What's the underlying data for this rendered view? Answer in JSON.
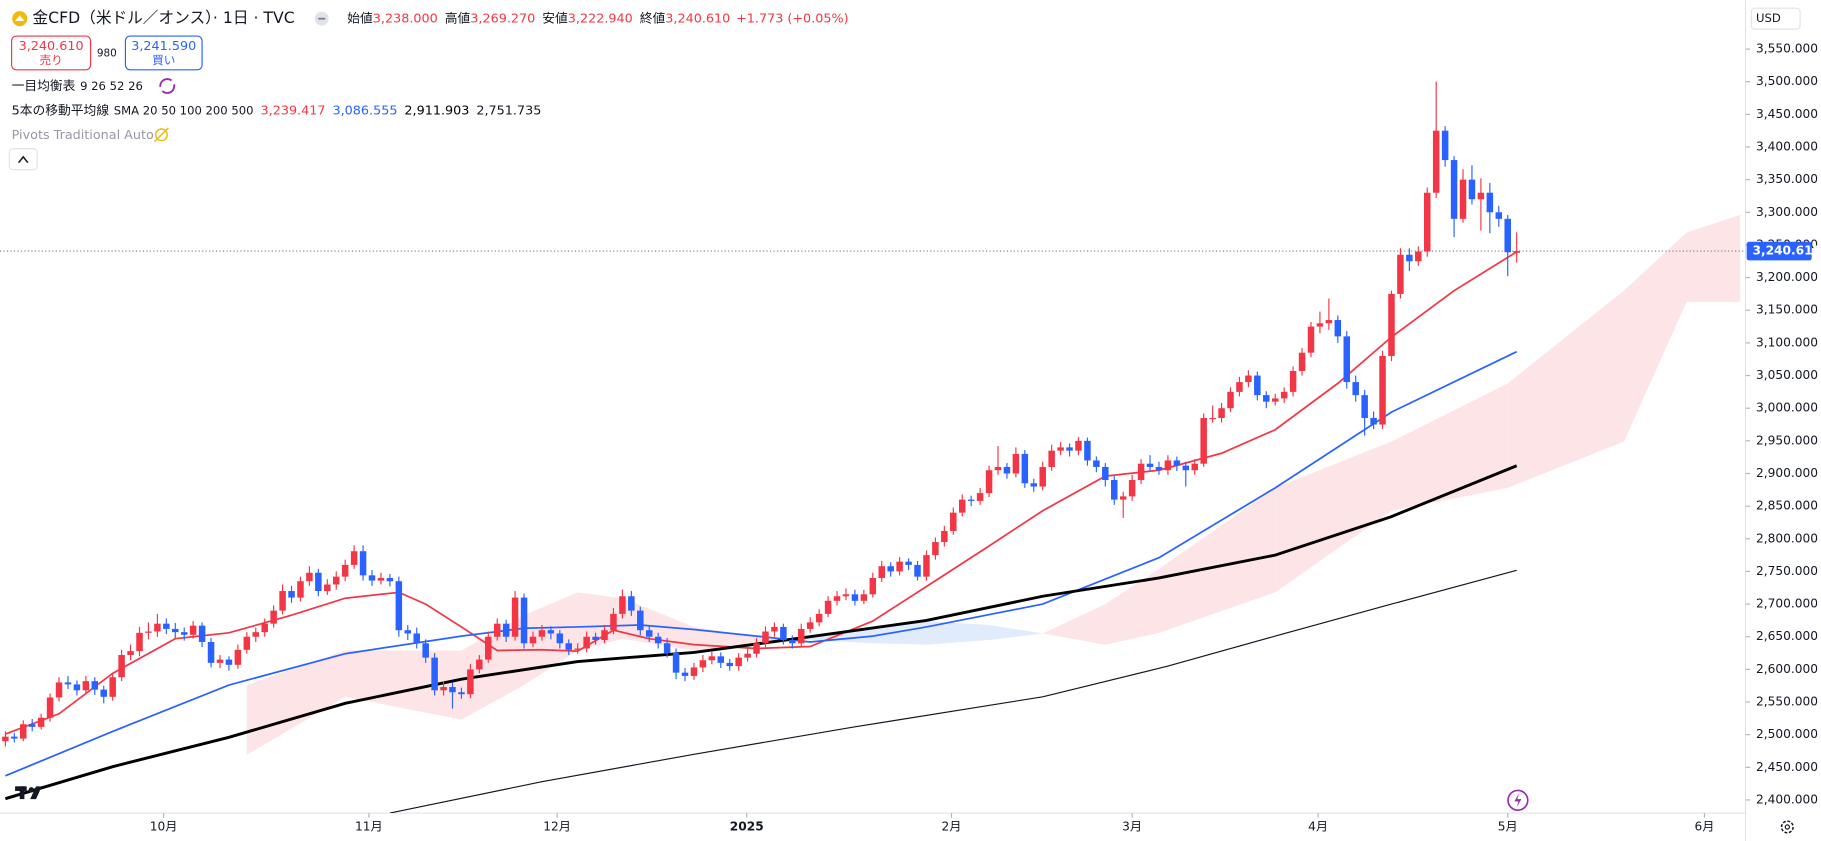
{
  "header": {
    "title": "金CFD（米ドル／オンス）· 1日 · TVC",
    "ohlc_labels": [
      "始値",
      "高値",
      "安値",
      "終値"
    ],
    "ohlc_values": [
      "3,238.000",
      "3,269.270",
      "3,222.940",
      "3,240.610"
    ],
    "change": "+1.773 (+0.05%)",
    "sell": {
      "price": "3,240.610",
      "label": "売り"
    },
    "spread": "980",
    "buy": {
      "price": "3,241.590",
      "label": "買い"
    },
    "indicators": [
      {
        "name": "一目均衡表",
        "params": "9 26 52 26"
      },
      {
        "name": "5本の移動平均線",
        "params": "SMA 20 50 100 200 500",
        "values": [
          "3,239.417",
          "3,086.555",
          "2,911.903",
          "2,751.735"
        ]
      },
      {
        "name": "Pivots Traditional Auto"
      }
    ]
  },
  "chart_data": {
    "type": "candlestick",
    "currency": "USD",
    "up_color": "#f23645",
    "down_color": "#2962ff",
    "ylim": [
      2380,
      3625
    ],
    "yticks": [
      {
        "value": 2400,
        "label": "2,400.000"
      },
      {
        "value": 2450,
        "label": "2,450.000"
      },
      {
        "value": 2500,
        "label": "2,500.000"
      },
      {
        "value": 2550,
        "label": "2,550.000"
      },
      {
        "value": 2600,
        "label": "2,600.000"
      },
      {
        "value": 2650,
        "label": "2,650.000"
      },
      {
        "value": 2700,
        "label": "2,700.000"
      },
      {
        "value": 2750,
        "label": "2,750.000"
      },
      {
        "value": 2800,
        "label": "2,800.000"
      },
      {
        "value": 2850,
        "label": "2,850.000"
      },
      {
        "value": 2900,
        "label": "2,900.000"
      },
      {
        "value": 2950,
        "label": "2,950.000"
      },
      {
        "value": 3000,
        "label": "3,000.000"
      },
      {
        "value": 3050,
        "label": "3,050.000"
      },
      {
        "value": 3100,
        "label": "3,100.000"
      },
      {
        "value": 3150,
        "label": "3,150.000"
      },
      {
        "value": 3200,
        "label": "3,200.000"
      },
      {
        "value": 3250,
        "label": "3,250.000"
      },
      {
        "value": 3300,
        "label": "3,300.000"
      },
      {
        "value": 3350,
        "label": "3,350.000"
      },
      {
        "value": 3400,
        "label": "3,400.000"
      },
      {
        "value": 3450,
        "label": "3,450.000"
      },
      {
        "value": 3500,
        "label": "3,500.000"
      },
      {
        "value": 3550,
        "label": "3,550.000"
      }
    ],
    "xlim": [
      -0.6,
      194.2
    ],
    "xticks": [
      {
        "value": 17.7,
        "label": "10月"
      },
      {
        "value": 40.65,
        "label": "11月"
      },
      {
        "value": 61.7,
        "label": "12月"
      },
      {
        "value": 82.9,
        "label": "2025"
      },
      {
        "value": 105.8,
        "label": "2月"
      },
      {
        "value": 126,
        "label": "3月"
      },
      {
        "value": 146.8,
        "label": "4月"
      },
      {
        "value": 168,
        "label": "5月"
      },
      {
        "value": 190,
        "label": "6月"
      }
    ],
    "last_price": {
      "value": 3240.61,
      "label": "3,240.610"
    },
    "ohlc": [
      [
        2490,
        2505,
        2482,
        2497
      ],
      [
        2497,
        2503,
        2488,
        2494
      ],
      [
        2494,
        2522,
        2490,
        2516
      ],
      [
        2516,
        2524,
        2505,
        2512
      ],
      [
        2512,
        2532,
        2508,
        2526
      ],
      [
        2526,
        2563,
        2520,
        2557
      ],
      [
        2557,
        2588,
        2551,
        2580
      ],
      [
        2580,
        2590,
        2570,
        2577
      ],
      [
        2577,
        2583,
        2560,
        2568
      ],
      [
        2568,
        2590,
        2562,
        2582
      ],
      [
        2582,
        2588,
        2561,
        2569
      ],
      [
        2569,
        2575,
        2548,
        2558
      ],
      [
        2558,
        2594,
        2552,
        2588
      ],
      [
        2588,
        2630,
        2582,
        2622
      ],
      [
        2622,
        2638,
        2614,
        2628
      ],
      [
        2628,
        2665,
        2620,
        2656
      ],
      [
        2656,
        2672,
        2646,
        2658
      ],
      [
        2658,
        2685,
        2650,
        2670
      ],
      [
        2670,
        2678,
        2654,
        2662
      ],
      [
        2662,
        2671,
        2648,
        2657
      ],
      [
        2657,
        2664,
        2644,
        2653
      ],
      [
        2653,
        2674,
        2647,
        2667
      ],
      [
        2667,
        2672,
        2634,
        2642
      ],
      [
        2642,
        2648,
        2603,
        2610
      ],
      [
        2610,
        2622,
        2602,
        2615
      ],
      [
        2615,
        2620,
        2598,
        2607
      ],
      [
        2607,
        2638,
        2601,
        2630
      ],
      [
        2630,
        2657,
        2624,
        2650
      ],
      [
        2650,
        2664,
        2642,
        2657
      ],
      [
        2657,
        2678,
        2650,
        2670
      ],
      [
        2670,
        2698,
        2664,
        2690
      ],
      [
        2690,
        2730,
        2684,
        2720
      ],
      [
        2720,
        2728,
        2702,
        2710
      ],
      [
        2710,
        2742,
        2704,
        2735
      ],
      [
        2735,
        2758,
        2728,
        2748
      ],
      [
        2748,
        2754,
        2712,
        2720
      ],
      [
        2720,
        2738,
        2714,
        2730
      ],
      [
        2730,
        2750,
        2722,
        2742
      ],
      [
        2742,
        2768,
        2735,
        2760
      ],
      [
        2760,
        2790,
        2754,
        2781
      ],
      [
        2781,
        2790,
        2736,
        2744
      ],
      [
        2744,
        2752,
        2728,
        2736
      ],
      [
        2736,
        2748,
        2730,
        2740
      ],
      [
        2740,
        2746,
        2727,
        2735
      ],
      [
        2735,
        2742,
        2650,
        2660
      ],
      [
        2660,
        2668,
        2645,
        2655
      ],
      [
        2655,
        2664,
        2632,
        2640
      ],
      [
        2640,
        2646,
        2610,
        2618
      ],
      [
        2618,
        2625,
        2560,
        2568
      ],
      [
        2568,
        2582,
        2560,
        2573
      ],
      [
        2573,
        2580,
        2540,
        2565
      ],
      [
        2565,
        2572,
        2555,
        2562
      ],
      [
        2562,
        2608,
        2556,
        2600
      ],
      [
        2600,
        2622,
        2594,
        2615
      ],
      [
        2615,
        2658,
        2610,
        2650
      ],
      [
        2650,
        2678,
        2644,
        2670
      ],
      [
        2670,
        2676,
        2642,
        2650
      ],
      [
        2650,
        2720,
        2644,
        2710
      ],
      [
        2710,
        2716,
        2632,
        2640
      ],
      [
        2640,
        2658,
        2634,
        2650
      ],
      [
        2650,
        2668,
        2644,
        2660
      ],
      [
        2660,
        2666,
        2646,
        2655
      ],
      [
        2655,
        2660,
        2632,
        2640
      ],
      [
        2640,
        2646,
        2622,
        2630
      ],
      [
        2630,
        2640,
        2624,
        2632
      ],
      [
        2632,
        2658,
        2626,
        2650
      ],
      [
        2650,
        2656,
        2638,
        2645
      ],
      [
        2645,
        2668,
        2640,
        2660
      ],
      [
        2660,
        2694,
        2654,
        2685
      ],
      [
        2685,
        2722,
        2678,
        2712
      ],
      [
        2712,
        2720,
        2682,
        2690
      ],
      [
        2690,
        2696,
        2652,
        2660
      ],
      [
        2660,
        2668,
        2642,
        2650
      ],
      [
        2650,
        2656,
        2632,
        2640
      ],
      [
        2640,
        2648,
        2618,
        2625
      ],
      [
        2625,
        2632,
        2585,
        2595
      ],
      [
        2595,
        2602,
        2582,
        2590
      ],
      [
        2590,
        2610,
        2584,
        2603
      ],
      [
        2603,
        2622,
        2596,
        2614
      ],
      [
        2614,
        2628,
        2608,
        2620
      ],
      [
        2620,
        2626,
        2602,
        2610
      ],
      [
        2610,
        2616,
        2598,
        2605
      ],
      [
        2605,
        2625,
        2598,
        2618
      ],
      [
        2618,
        2632,
        2612,
        2624
      ],
      [
        2624,
        2648,
        2618,
        2640
      ],
      [
        2640,
        2666,
        2634,
        2658
      ],
      [
        2658,
        2672,
        2650,
        2665
      ],
      [
        2665,
        2670,
        2638,
        2645
      ],
      [
        2645,
        2652,
        2632,
        2640
      ],
      [
        2640,
        2670,
        2634,
        2662
      ],
      [
        2662,
        2680,
        2656,
        2672
      ],
      [
        2672,
        2692,
        2666,
        2685
      ],
      [
        2685,
        2712,
        2680,
        2705
      ],
      [
        2705,
        2720,
        2698,
        2712
      ],
      [
        2712,
        2724,
        2706,
        2715
      ],
      [
        2715,
        2722,
        2698,
        2705
      ],
      [
        2705,
        2722,
        2700,
        2715
      ],
      [
        2715,
        2748,
        2710,
        2740
      ],
      [
        2740,
        2766,
        2734,
        2758
      ],
      [
        2758,
        2764,
        2742,
        2750
      ],
      [
        2750,
        2772,
        2744,
        2765
      ],
      [
        2765,
        2770,
        2752,
        2760
      ],
      [
        2760,
        2766,
        2736,
        2742
      ],
      [
        2742,
        2782,
        2736,
        2775
      ],
      [
        2775,
        2802,
        2768,
        2795
      ],
      [
        2795,
        2820,
        2788,
        2812
      ],
      [
        2812,
        2848,
        2806,
        2840
      ],
      [
        2840,
        2868,
        2834,
        2860
      ],
      [
        2860,
        2866,
        2850,
        2858
      ],
      [
        2858,
        2878,
        2852,
        2870
      ],
      [
        2870,
        2912,
        2864,
        2905
      ],
      [
        2905,
        2942,
        2898,
        2910
      ],
      [
        2910,
        2916,
        2892,
        2900
      ],
      [
        2900,
        2940,
        2894,
        2930
      ],
      [
        2930,
        2936,
        2878,
        2885
      ],
      [
        2885,
        2892,
        2872,
        2880
      ],
      [
        2880,
        2918,
        2874,
        2910
      ],
      [
        2910,
        2944,
        2904,
        2935
      ],
      [
        2935,
        2948,
        2928,
        2940
      ],
      [
        2940,
        2946,
        2926,
        2935
      ],
      [
        2935,
        2956,
        2928,
        2950
      ],
      [
        2950,
        2955,
        2912,
        2920
      ],
      [
        2920,
        2926,
        2902,
        2910
      ],
      [
        2910,
        2916,
        2880,
        2890
      ],
      [
        2890,
        2896,
        2852,
        2860
      ],
      [
        2860,
        2872,
        2832,
        2865
      ],
      [
        2865,
        2898,
        2858,
        2890
      ],
      [
        2890,
        2922,
        2884,
        2915
      ],
      [
        2915,
        2928,
        2904,
        2910
      ],
      [
        2910,
        2918,
        2898,
        2905
      ],
      [
        2905,
        2928,
        2898,
        2920
      ],
      [
        2920,
        2926,
        2904,
        2912
      ],
      [
        2912,
        2918,
        2880,
        2905
      ],
      [
        2905,
        2922,
        2898,
        2915
      ],
      [
        2915,
        2992,
        2910,
        2985
      ],
      [
        2985,
        3004,
        2978,
        2985
      ],
      [
        2985,
        3008,
        2978,
        3000
      ],
      [
        3000,
        3032,
        2994,
        3025
      ],
      [
        3025,
        3048,
        3018,
        3040
      ],
      [
        3040,
        3058,
        3032,
        3050
      ],
      [
        3050,
        3056,
        3012,
        3020
      ],
      [
        3020,
        3026,
        3000,
        3010
      ],
      [
        3010,
        3022,
        3004,
        3015
      ],
      [
        3015,
        3032,
        3008,
        3025
      ],
      [
        3025,
        3064,
        3018,
        3057
      ],
      [
        3057,
        3092,
        3050,
        3085
      ],
      [
        3085,
        3132,
        3078,
        3125
      ],
      [
        3125,
        3148,
        3115,
        3130
      ],
      [
        3130,
        3168,
        3120,
        3135
      ],
      [
        3135,
        3142,
        3100,
        3110
      ],
      [
        3110,
        3118,
        3030,
        3040
      ],
      [
        3040,
        3050,
        3010,
        3020
      ],
      [
        3020,
        3028,
        2958,
        2985
      ],
      [
        2985,
        2995,
        2968,
        2975
      ],
      [
        2975,
        3088,
        2968,
        3080
      ],
      [
        3080,
        3180,
        3072,
        3175
      ],
      [
        3175,
        3245,
        3168,
        3235
      ],
      [
        3235,
        3245,
        3210,
        3225
      ],
      [
        3225,
        3248,
        3218,
        3240
      ],
      [
        3240,
        3338,
        3232,
        3330
      ],
      [
        3330,
        3500,
        3322,
        3425
      ],
      [
        3425,
        3432,
        3370,
        3380
      ],
      [
        3380,
        3386,
        3262,
        3290
      ],
      [
        3290,
        3366,
        3284,
        3350
      ],
      [
        3350,
        3372,
        3312,
        3320
      ],
      [
        3320,
        3352,
        3272,
        3330
      ],
      [
        3330,
        3345,
        3268,
        3300
      ],
      [
        3300,
        3310,
        3278,
        3290
      ],
      [
        3290,
        3296,
        3202,
        3238.84
      ],
      [
        3238,
        3269.27,
        3222.94,
        3240.61
      ]
    ],
    "lines": [
      {
        "color": "#f23645",
        "width": 1.5,
        "x": [
          0,
          6,
          12,
          19,
          25,
          32,
          38,
          44,
          47,
          51,
          55,
          60,
          64,
          68,
          72,
          77,
          84,
          90,
          97,
          103,
          110,
          116,
          123,
          129,
          136,
          142,
          149,
          155,
          162,
          169
        ],
        "values": [
          2501,
          2532,
          2594,
          2647,
          2656,
          2683,
          2709,
          2718,
          2700,
          2665,
          2629,
          2630,
          2628,
          2660,
          2647,
          2638,
          2632,
          2635,
          2674,
          2727,
          2789,
          2843,
          2896,
          2905,
          2931,
          2967,
          3038,
          3109,
          3180,
          3239.417
        ]
      },
      {
        "color": "#2962ff",
        "width": 1.5,
        "x": [
          0,
          12,
          25,
          38,
          51,
          58,
          64,
          71,
          77,
          84,
          90,
          97,
          103,
          116,
          129,
          142,
          155,
          169
        ],
        "values": [
          2437,
          2505,
          2576,
          2624,
          2651,
          2663,
          2665,
          2668,
          2661,
          2651,
          2642,
          2651,
          2665,
          2700,
          2771,
          2878,
          2994,
          3086.555
        ]
      },
      {
        "color": "#000000",
        "width": 2.5,
        "x": [
          0,
          12,
          25,
          38,
          51,
          64,
          77,
          90,
          103,
          116,
          129,
          142,
          155,
          169
        ],
        "values": [
          2402,
          2451,
          2496,
          2548,
          2585,
          2612,
          2626,
          2650,
          2675,
          2712,
          2740,
          2775,
          2834,
          2911.903
        ]
      },
      {
        "color": "#131722",
        "width": 1,
        "x": [
          43,
          60,
          77,
          95,
          116,
          130,
          142,
          155,
          169
        ],
        "values": [
          2380,
          2428,
          2470,
          2512,
          2558,
          2605,
          2651,
          2700,
          2751.735
        ]
      }
    ],
    "cloud": {
      "up_color": "#fde4e6",
      "down_color": "#e0ebfb",
      "x": [
        27,
        38,
        51,
        58,
        64,
        69,
        77,
        84,
        90,
        97,
        103,
        110,
        116,
        123,
        129,
        142,
        155,
        168,
        181,
        188,
        194
      ],
      "span_a": [
        2576,
        2629,
        2629,
        2683,
        2718,
        2709,
        2665,
        2650,
        2645,
        2640,
        2638,
        2645,
        2655,
        2700,
        2754,
        2878,
        2949,
        3038,
        3180,
        3269,
        3296
      ],
      "span_b": [
        2469,
        2558,
        2523,
        2576,
        2629,
        2647,
        2629,
        2640,
        2650,
        2665,
        2674,
        2668,
        2655,
        2638,
        2656,
        2718,
        2843,
        2878,
        2949,
        3163,
        3163
      ]
    }
  }
}
